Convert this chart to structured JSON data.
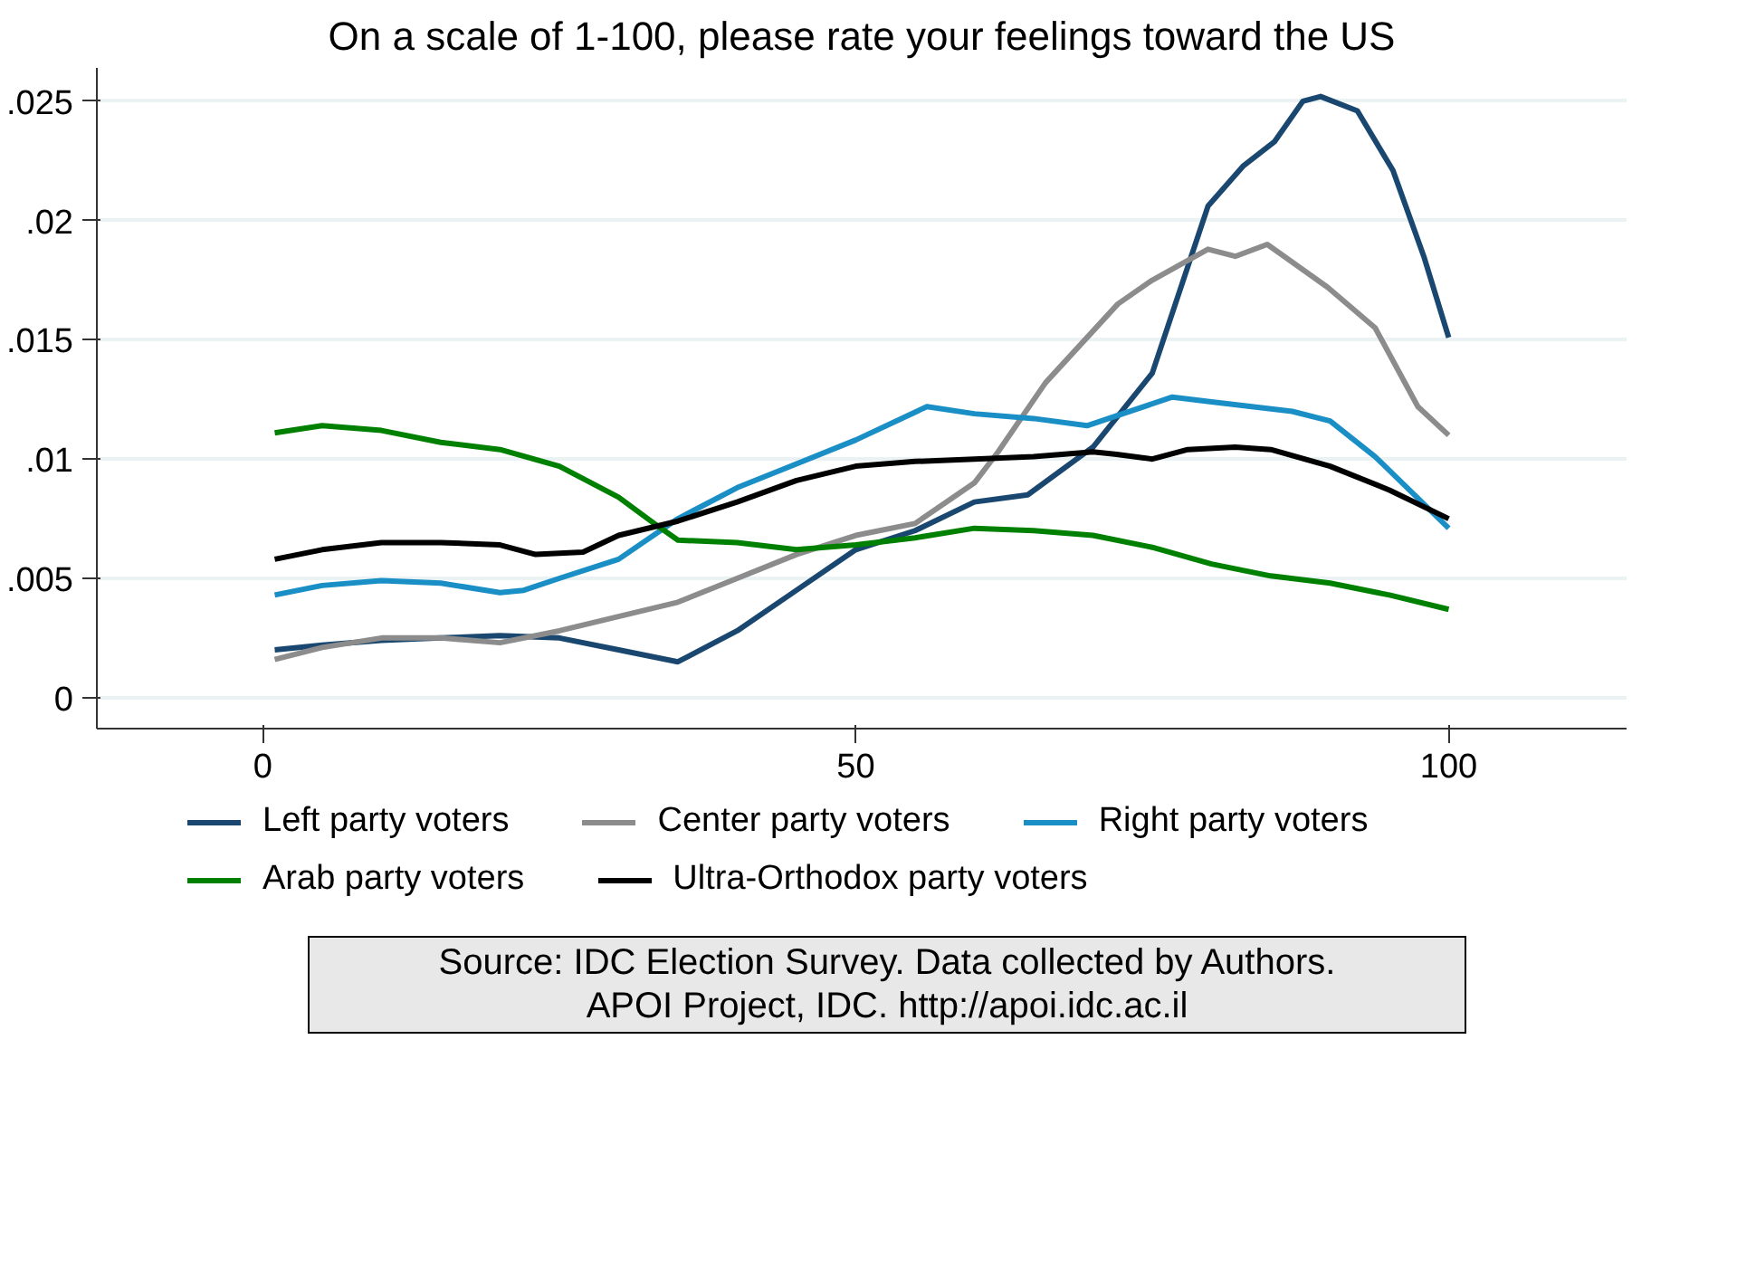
{
  "chart_data": {
    "type": "line",
    "title": "On a scale of 1-100, please rate your feelings toward the US",
    "xlim": [
      -14,
      115
    ],
    "ylim": [
      -0.0013,
      0.0264
    ],
    "xticks": [
      0,
      50,
      100
    ],
    "yticks": [
      0,
      {
        "value": 0.005,
        "label": ".005"
      },
      {
        "value": 0.01,
        "label": ".01"
      },
      {
        "value": 0.015,
        "label": ".015"
      },
      {
        "value": 0.02,
        "label": ".02"
      },
      {
        "value": 0.025,
        "label": ".025"
      }
    ],
    "grid": "y",
    "legend": "bottom",
    "line_style": "solid",
    "series": [
      {
        "name": "Left party voters",
        "color": "#1a476f",
        "x": [
          1,
          5,
          10,
          15,
          20,
          25,
          30,
          35,
          40,
          45,
          50,
          55,
          60,
          64.5,
          70,
          75,
          79.7,
          82.7,
          85.3,
          87.7,
          89.2,
          92.3,
          95.3,
          97.9,
          100
        ],
        "values": [
          0.002,
          0.0022,
          0.0024,
          0.0025,
          0.0026,
          0.0025,
          0.002,
          0.0015,
          0.0028,
          0.0045,
          0.0062,
          0.007,
          0.0082,
          0.0085,
          0.0105,
          0.0136,
          0.0206,
          0.0223,
          0.0233,
          0.025,
          0.0252,
          0.0246,
          0.0221,
          0.0185,
          0.0151
        ]
      },
      {
        "name": "Center party voters",
        "color": "#8c8c8c",
        "x": [
          1,
          5,
          10,
          15,
          20,
          25,
          30,
          35,
          40,
          45,
          50,
          55,
          60,
          62,
          66,
          72.1,
          75,
          79.7,
          82,
          84.7,
          89.8,
          93.8,
          97.4,
          100
        ],
        "values": [
          0.0016,
          0.0021,
          0.0025,
          0.0025,
          0.0023,
          0.0028,
          0.0034,
          0.004,
          0.005,
          0.006,
          0.0068,
          0.0073,
          0.009,
          0.0103,
          0.0132,
          0.0165,
          0.0175,
          0.0188,
          0.0185,
          0.019,
          0.0172,
          0.0155,
          0.0122,
          0.011
        ]
      },
      {
        "name": "Right party voters",
        "color": "#1a8fc6",
        "x": [
          1,
          5,
          10,
          15,
          20,
          22,
          25,
          30,
          35,
          40,
          45,
          50,
          56,
          60,
          65,
          69.5,
          76.7,
          80,
          86.8,
          90,
          93.8,
          100
        ],
        "values": [
          0.0043,
          0.0047,
          0.0049,
          0.0048,
          0.0044,
          0.0045,
          0.005,
          0.0058,
          0.0075,
          0.0088,
          0.0098,
          0.0108,
          0.0122,
          0.0119,
          0.0117,
          0.0114,
          0.0126,
          0.0124,
          0.012,
          0.0116,
          0.0101,
          0.0071
        ]
      },
      {
        "name": "Arab party voters",
        "color": "#008000",
        "x": [
          1,
          5,
          10,
          15,
          20,
          25,
          30,
          33,
          35,
          40,
          45,
          50,
          55,
          60,
          65,
          70,
          75,
          80,
          85,
          90,
          95,
          100
        ],
        "values": [
          0.0111,
          0.0114,
          0.0112,
          0.0107,
          0.0104,
          0.0097,
          0.0084,
          0.0073,
          0.0066,
          0.0065,
          0.0062,
          0.0064,
          0.0067,
          0.0071,
          0.007,
          0.0068,
          0.0063,
          0.0056,
          0.0051,
          0.0048,
          0.0043,
          0.0037
        ]
      },
      {
        "name": "Ultra-Orthodox party voters",
        "color": "#000000",
        "x": [
          1,
          5,
          10,
          15,
          20,
          23,
          27,
          30,
          35,
          40,
          45,
          50,
          55,
          60,
          65,
          70,
          72,
          75,
          78,
          82,
          85,
          90,
          95,
          100
        ],
        "values": [
          0.0058,
          0.0062,
          0.0065,
          0.0065,
          0.0064,
          0.006,
          0.0061,
          0.0068,
          0.0074,
          0.0082,
          0.0091,
          0.0097,
          0.0099,
          0.01,
          0.0101,
          0.0103,
          0.0102,
          0.01,
          0.0104,
          0.0105,
          0.0104,
          0.0097,
          0.0087,
          0.0075
        ]
      }
    ],
    "annotations": [
      "Source: IDC Election Survey. Data collected by Authors.\nAPOI Project, IDC. http://apoi.idc.ac.il"
    ]
  }
}
